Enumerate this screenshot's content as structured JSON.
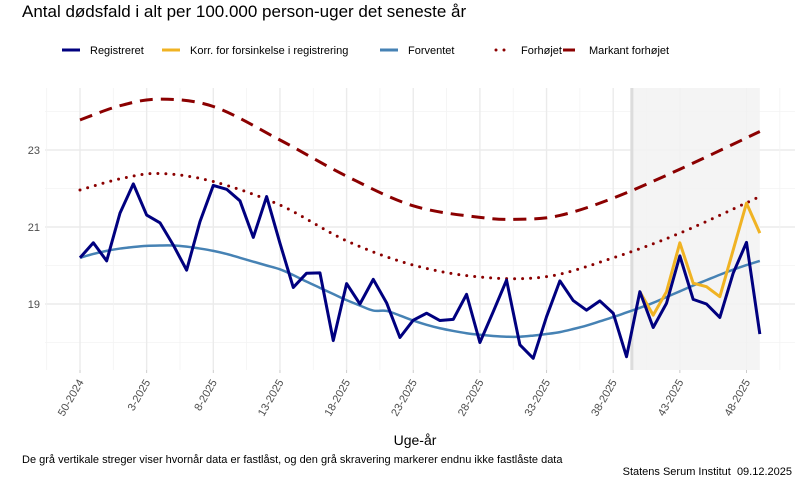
{
  "chart_data": {
    "type": "line",
    "title": "Antal dødsfald i alt per 100.000 person-uger det seneste år",
    "xlabel": "Uge-år",
    "ylabel": "",
    "caption": "De grå vertikale streger viser hvornår data er fastlåst, og den grå skravering markerer endnu ikke fastlåste data",
    "source": "Statens Serum Institut  09.12.2025",
    "legend_position": "top",
    "grid": true,
    "ylim": [
      17.3,
      24.6
    ],
    "yticks": [
      19,
      21,
      23
    ],
    "xtick_labels": [
      "50-2024",
      "3-2025",
      "8-2025",
      "13-2025",
      "18-2025",
      "23-2025",
      "28-2025",
      "33-2025",
      "38-2025",
      "43-2025",
      "48-2025"
    ],
    "categories": [
      "50-2024",
      "51-2024",
      "52-2024",
      "1-2025",
      "2-2025",
      "3-2025",
      "4-2025",
      "5-2025",
      "6-2025",
      "7-2025",
      "8-2025",
      "9-2025",
      "10-2025",
      "11-2025",
      "12-2025",
      "13-2025",
      "14-2025",
      "15-2025",
      "16-2025",
      "17-2025",
      "18-2025",
      "19-2025",
      "20-2025",
      "21-2025",
      "22-2025",
      "23-2025",
      "24-2025",
      "25-2025",
      "26-2025",
      "27-2025",
      "28-2025",
      "29-2025",
      "30-2025",
      "31-2025",
      "32-2025",
      "33-2025",
      "34-2025",
      "35-2025",
      "36-2025",
      "37-2025",
      "38-2025",
      "39-2025",
      "40-2025",
      "41-2025",
      "42-2025",
      "43-2025",
      "44-2025",
      "45-2025",
      "46-2025",
      "47-2025",
      "48-2025",
      "49-2025"
    ],
    "shaded_not_locked": {
      "from": "39-2025",
      "to": "49-2025",
      "color": "#f2f2f2",
      "line_color": "#dcdcdc"
    },
    "series": [
      {
        "name": "Registreret",
        "color": "#00007f",
        "style": "solid",
        "values": [
          20.2,
          20.59,
          20.12,
          21.36,
          22.12,
          21.31,
          21.11,
          20.53,
          19.88,
          21.14,
          22.08,
          21.98,
          21.68,
          20.73,
          21.79,
          20.58,
          19.43,
          19.8,
          19.81,
          18.05,
          19.53,
          19.0,
          19.64,
          19.03,
          18.13,
          18.58,
          18.76,
          18.57,
          18.6,
          19.25,
          18.0,
          18.8,
          19.62,
          17.94,
          17.59,
          18.67,
          19.6,
          19.09,
          18.84,
          19.08,
          18.76,
          17.63,
          19.32,
          18.39,
          19.02,
          20.25,
          19.12,
          19.0,
          18.65,
          19.8,
          20.6,
          18.22
        ]
      },
      {
        "name": "Korr. for forsinkelse i registrering",
        "color": "#f0b323",
        "style": "solid",
        "values": [
          null,
          null,
          null,
          null,
          null,
          null,
          null,
          null,
          null,
          null,
          null,
          null,
          null,
          null,
          null,
          null,
          null,
          null,
          null,
          null,
          null,
          null,
          null,
          null,
          null,
          null,
          null,
          null,
          null,
          null,
          null,
          null,
          null,
          null,
          null,
          null,
          null,
          null,
          null,
          null,
          null,
          null,
          19.32,
          18.71,
          19.32,
          20.59,
          19.54,
          19.45,
          19.19,
          20.4,
          21.62,
          20.84
        ]
      },
      {
        "name": "Forventet",
        "color": "#4682b4",
        "style": "solid",
        "values": [
          20.2,
          20.3,
          20.38,
          20.44,
          20.48,
          20.51,
          20.52,
          20.52,
          20.49,
          20.44,
          20.38,
          20.3,
          20.2,
          20.1,
          20.0,
          19.9,
          19.75,
          19.58,
          19.42,
          19.26,
          19.1,
          18.96,
          18.83,
          18.82,
          18.7,
          18.57,
          18.46,
          18.37,
          18.3,
          18.24,
          18.2,
          18.17,
          18.15,
          18.15,
          18.18,
          18.22,
          18.27,
          18.35,
          18.44,
          18.55,
          18.66,
          18.78,
          18.9,
          19.03,
          19.18,
          19.33,
          19.48,
          19.62,
          19.76,
          19.89,
          20.01,
          20.12
        ]
      },
      {
        "name": "Forhøjet",
        "color": "#8b0000",
        "style": "dotted",
        "points": [
          [
            "50-2024",
            21.96
          ],
          [
            "1-2025",
            22.25
          ],
          [
            "4-2025",
            22.39
          ],
          [
            "8-2025",
            22.18
          ],
          [
            "13-2025",
            21.57
          ],
          [
            "18-2025",
            20.64
          ],
          [
            "23-2025",
            20.01
          ],
          [
            "28-2025",
            19.7
          ],
          [
            "33-2025",
            19.71
          ],
          [
            "38-2025",
            20.2
          ],
          [
            "43-2025",
            20.84
          ],
          [
            "49-2025",
            21.79
          ]
        ]
      },
      {
        "name": "Markant forhøjet",
        "color": "#8b0000",
        "style": "dashed",
        "points": [
          [
            "50-2024",
            23.78
          ],
          [
            "1-2025",
            24.15
          ],
          [
            "4-2025",
            24.32
          ],
          [
            "8-2025",
            24.13
          ],
          [
            "13-2025",
            23.26
          ],
          [
            "18-2025",
            22.32
          ],
          [
            "23-2025",
            21.55
          ],
          [
            "28-2025",
            21.25
          ],
          [
            "31-2025",
            21.2
          ],
          [
            "34-2025",
            21.3
          ],
          [
            "38-2025",
            21.75
          ],
          [
            "43-2025",
            22.5
          ],
          [
            "49-2025",
            23.48
          ]
        ]
      }
    ]
  }
}
